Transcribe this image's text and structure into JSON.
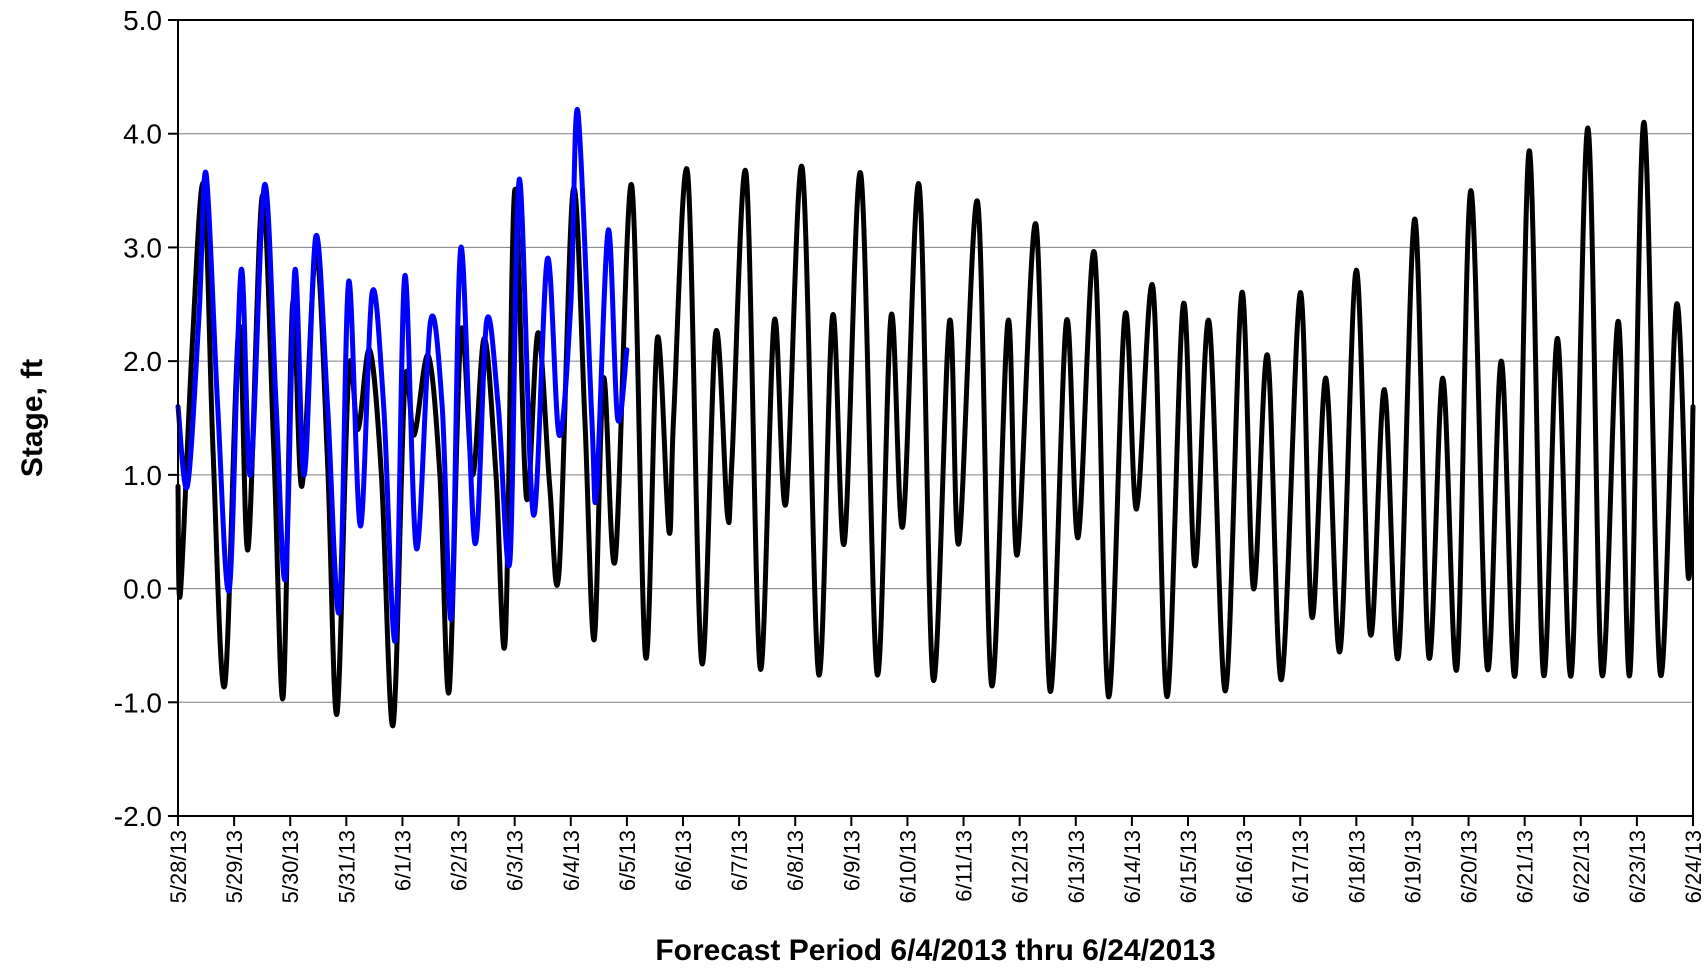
{
  "chart_data": {
    "type": "line",
    "title": "",
    "xlabel": "Forecast Period 6/4/2013 thru 6/24/2013",
    "ylabel": "Stage, ft",
    "ylim": [
      -2.0,
      5.0
    ],
    "y_ticks": [
      "-2.0",
      "-1.0",
      "0.0",
      "1.0",
      "2.0",
      "3.0",
      "4.0",
      "5.0"
    ],
    "x_ticks": [
      "5/28/13",
      "5/29/13",
      "5/30/13",
      "5/31/13",
      "6/1/13",
      "6/2/13",
      "6/3/13",
      "6/4/13",
      "6/5/13",
      "6/6/13",
      "6/7/13",
      "6/8/13",
      "6/9/13",
      "6/10/13",
      "6/11/13",
      "6/12/13",
      "6/13/13",
      "6/14/13",
      "6/15/13",
      "6/16/13",
      "6/17/13",
      "6/18/13",
      "6/19/13",
      "6/20/13",
      "6/21/13",
      "6/22/13",
      "6/23/13",
      "6/24/13"
    ],
    "x_range": [
      "5/28/13",
      "6/24/13"
    ],
    "grid": "horizontal",
    "legend": "none",
    "series": [
      {
        "color": "#0000ff",
        "points": [
          [
            "5/28/13 00:00",
            1.6
          ],
          [
            "5/28/13 04:00",
            0.9
          ],
          [
            "5/28/13 09:00",
            2.4
          ],
          [
            "5/28/13 12:00",
            3.65
          ],
          [
            "5/28/13 17:00",
            1.6
          ],
          [
            "5/28/13 22:00",
            0.0
          ],
          [
            "5/29/13 03:00",
            2.8
          ],
          [
            "5/29/13 07:00",
            1.0
          ],
          [
            "5/29/13 13:00",
            3.55
          ],
          [
            "5/29/13 18:00",
            1.6
          ],
          [
            "5/29/13 22:00",
            0.1
          ],
          [
            "5/30/13 02:00",
            2.8
          ],
          [
            "5/30/13 06:00",
            1.0
          ],
          [
            "5/30/13 11:00",
            3.1
          ],
          [
            "5/30/13 16:00",
            1.6
          ],
          [
            "5/30/13 21:00",
            -0.2
          ],
          [
            "5/31/13 01:00",
            2.7
          ],
          [
            "5/31/13 06:00",
            0.55
          ],
          [
            "5/31/13 11:00",
            2.6
          ],
          [
            "5/31/13 16:00",
            1.6
          ],
          [
            "5/31/13 21:00",
            -0.45
          ],
          [
            "6/1/13 01:00",
            2.75
          ],
          [
            "6/1/13 06:00",
            0.35
          ],
          [
            "6/1/13 12:00",
            2.35
          ],
          [
            "6/1/13 17:00",
            1.6
          ],
          [
            "6/1/13 21:00",
            -0.25
          ],
          [
            "6/2/13 01:00",
            3.0
          ],
          [
            "6/2/13 07:00",
            0.4
          ],
          [
            "6/2/13 12:00",
            2.35
          ],
          [
            "6/2/13 17:00",
            1.6
          ],
          [
            "6/2/13 22:00",
            0.25
          ],
          [
            "6/3/13 02:00",
            3.6
          ],
          [
            "6/3/13 08:00",
            0.65
          ],
          [
            "6/3/13 14:00",
            2.9
          ],
          [
            "6/3/13 19:00",
            1.35
          ],
          [
            "6/4/13 00:00",
            2.5
          ],
          [
            "6/4/13 03:00",
            4.2
          ],
          [
            "6/4/13 09:00",
            1.5
          ],
          [
            "6/4/13 11:00",
            0.85
          ],
          [
            "6/4/13 16:00",
            3.15
          ],
          [
            "6/4/13 20:00",
            1.5
          ],
          [
            "6/5/13 00:00",
            2.1
          ]
        ]
      },
      {
        "color": "#000000",
        "points": [
          [
            "5/28/13 00:00",
            0.9
          ],
          [
            "5/28/13 01:00",
            -0.05
          ],
          [
            "5/28/13 06:00",
            2.1
          ],
          [
            "5/28/13 11:00",
            3.55
          ],
          [
            "5/28/13 15:00",
            1.2
          ],
          [
            "5/28/13 20:00",
            -0.85
          ],
          [
            "5/29/13 02:00",
            2.3
          ],
          [
            "5/29/13 06:00",
            0.35
          ],
          [
            "5/29/13 12:00",
            3.45
          ],
          [
            "5/29/13 17:00",
            1.2
          ],
          [
            "5/29/13 21:00",
            -0.95
          ],
          [
            "5/30/13 01:00",
            2.5
          ],
          [
            "5/30/13 05:00",
            0.9
          ],
          [
            "5/30/13 11:00",
            2.95
          ],
          [
            "5/30/13 16:00",
            1.1
          ],
          [
            "5/30/13 20:00",
            -1.1
          ],
          [
            "5/31/13 01:00",
            1.9
          ],
          [
            "5/31/13 05:00",
            1.4
          ],
          [
            "5/31/13 10:00",
            2.1
          ],
          [
            "5/31/13 15:00",
            1.0
          ],
          [
            "5/31/13 20:00",
            -1.2
          ],
          [
            "6/1/13 01:00",
            1.8
          ],
          [
            "6/1/13 05:00",
            1.35
          ],
          [
            "6/1/13 11:00",
            2.05
          ],
          [
            "6/1/13 16:00",
            1.0
          ],
          [
            "6/1/13 20:00",
            -0.9
          ],
          [
            "6/2/13 01:00",
            2.25
          ],
          [
            "6/2/13 06:00",
            1.0
          ],
          [
            "6/2/13 11:00",
            2.2
          ],
          [
            "6/2/13 16:00",
            1.0
          ],
          [
            "6/2/13 20:00",
            -0.45
          ],
          [
            "6/3/13 00:00",
            3.5
          ],
          [
            "6/3/13 05:00",
            0.8
          ],
          [
            "6/3/13 10:00",
            2.25
          ],
          [
            "6/3/13 15:00",
            0.9
          ],
          [
            "6/3/13 19:00",
            0.15
          ],
          [
            "6/4/13 01:00",
            3.5
          ],
          [
            "6/4/13 06:00",
            1.5
          ],
          [
            "6/4/13 10:00",
            -0.45
          ],
          [
            "6/4/13 14:00",
            1.85
          ],
          [
            "6/4/13 19:00",
            0.25
          ],
          [
            "6/5/13 02:00",
            3.55
          ],
          [
            "6/5/13 08:00",
            -0.6
          ],
          [
            "6/5/13 13:00",
            2.2
          ],
          [
            "6/5/13 18:00",
            0.5
          ],
          [
            "6/5/13 20:00",
            1.5
          ],
          [
            "6/6/13 02:00",
            3.65
          ],
          [
            "6/6/13 08:00",
            -0.65
          ],
          [
            "6/6/13 14:00",
            2.25
          ],
          [
            "6/6/13 19:00",
            0.65
          ],
          [
            "6/6/13 21:00",
            1.15
          ],
          [
            "6/7/13 03:00",
            3.65
          ],
          [
            "6/7/13 09:00",
            -0.7
          ],
          [
            "6/7/13 15:00",
            2.35
          ],
          [
            "6/7/13 20:00",
            0.75
          ],
          [
            "6/8/13 03:00",
            3.7
          ],
          [
            "6/8/13 10:00",
            -0.75
          ],
          [
            "6/8/13 16:00",
            2.4
          ],
          [
            "6/8/13 21:00",
            0.4
          ],
          [
            "6/9/13 04:00",
            3.65
          ],
          [
            "6/9/13 11:00",
            -0.75
          ],
          [
            "6/9/13 17:00",
            2.4
          ],
          [
            "6/9/13 22:00",
            0.55
          ],
          [
            "6/10/13 05:00",
            3.55
          ],
          [
            "6/10/13 11:00",
            -0.8
          ],
          [
            "6/10/13 18:00",
            2.35
          ],
          [
            "6/10/13 22:00",
            0.4
          ],
          [
            "6/11/13 06:00",
            3.4
          ],
          [
            "6/11/13 12:00",
            -0.85
          ],
          [
            "6/11/13 19:00",
            2.35
          ],
          [
            "6/11/13 23:00",
            0.3
          ],
          [
            "6/12/13 07:00",
            3.2
          ],
          [
            "6/12/13 13:00",
            -0.9
          ],
          [
            "6/12/13 20:00",
            2.35
          ],
          [
            "6/13/13 01:00",
            0.45
          ],
          [
            "6/13/13 08:00",
            2.95
          ],
          [
            "6/13/13 14:00",
            -0.95
          ],
          [
            "6/13/13 21:00",
            2.4
          ],
          [
            "6/14/13 02:00",
            0.7
          ],
          [
            "6/14/13 09:00",
            2.65
          ],
          [
            "6/14/13 15:00",
            -0.95
          ],
          [
            "6/14/13 22:00",
            2.5
          ],
          [
            "6/15/13 03:00",
            0.2
          ],
          [
            "6/15/13 09:00",
            2.35
          ],
          [
            "6/15/13 16:00",
            -0.9
          ],
          [
            "6/15/13 23:00",
            2.6
          ],
          [
            "6/16/13 04:00",
            0.0
          ],
          [
            "6/16/13 10:00",
            2.05
          ],
          [
            "6/16/13 16:00",
            -0.8
          ],
          [
            "6/17/13 00:00",
            2.6
          ],
          [
            "6/17/13 05:00",
            -0.25
          ],
          [
            "6/17/13 11:00",
            1.85
          ],
          [
            "6/17/13 17:00",
            -0.55
          ],
          [
            "6/18/13 00:00",
            2.8
          ],
          [
            "6/18/13 06:00",
            -0.4
          ],
          [
            "6/18/13 12:00",
            1.75
          ],
          [
            "6/18/13 18:00",
            -0.6
          ],
          [
            "6/19/13 01:00",
            3.25
          ],
          [
            "6/19/13 07:00",
            -0.6
          ],
          [
            "6/19/13 13:00",
            1.85
          ],
          [
            "6/19/13 19:00",
            -0.7
          ],
          [
            "6/20/13 01:00",
            3.5
          ],
          [
            "6/20/13 08:00",
            -0.7
          ],
          [
            "6/20/13 14:00",
            2.0
          ],
          [
            "6/20/13 20:00",
            -0.75
          ],
          [
            "6/21/13 02:00",
            3.85
          ],
          [
            "6/21/13 08:00",
            -0.75
          ],
          [
            "6/21/13 14:00",
            2.2
          ],
          [
            "6/21/13 20:00",
            -0.75
          ],
          [
            "6/22/13 03:00",
            4.05
          ],
          [
            "6/22/13 09:00",
            -0.75
          ],
          [
            "6/22/13 16:00",
            2.35
          ],
          [
            "6/22/13 21:00",
            -0.75
          ],
          [
            "6/23/13 03:00",
            4.1
          ],
          [
            "6/23/13 10:00",
            -0.75
          ],
          [
            "6/23/13 17:00",
            2.5
          ],
          [
            "6/23/13 22:00",
            0.1
          ],
          [
            "6/24/13 00:00",
            1.6
          ]
        ]
      }
    ]
  }
}
